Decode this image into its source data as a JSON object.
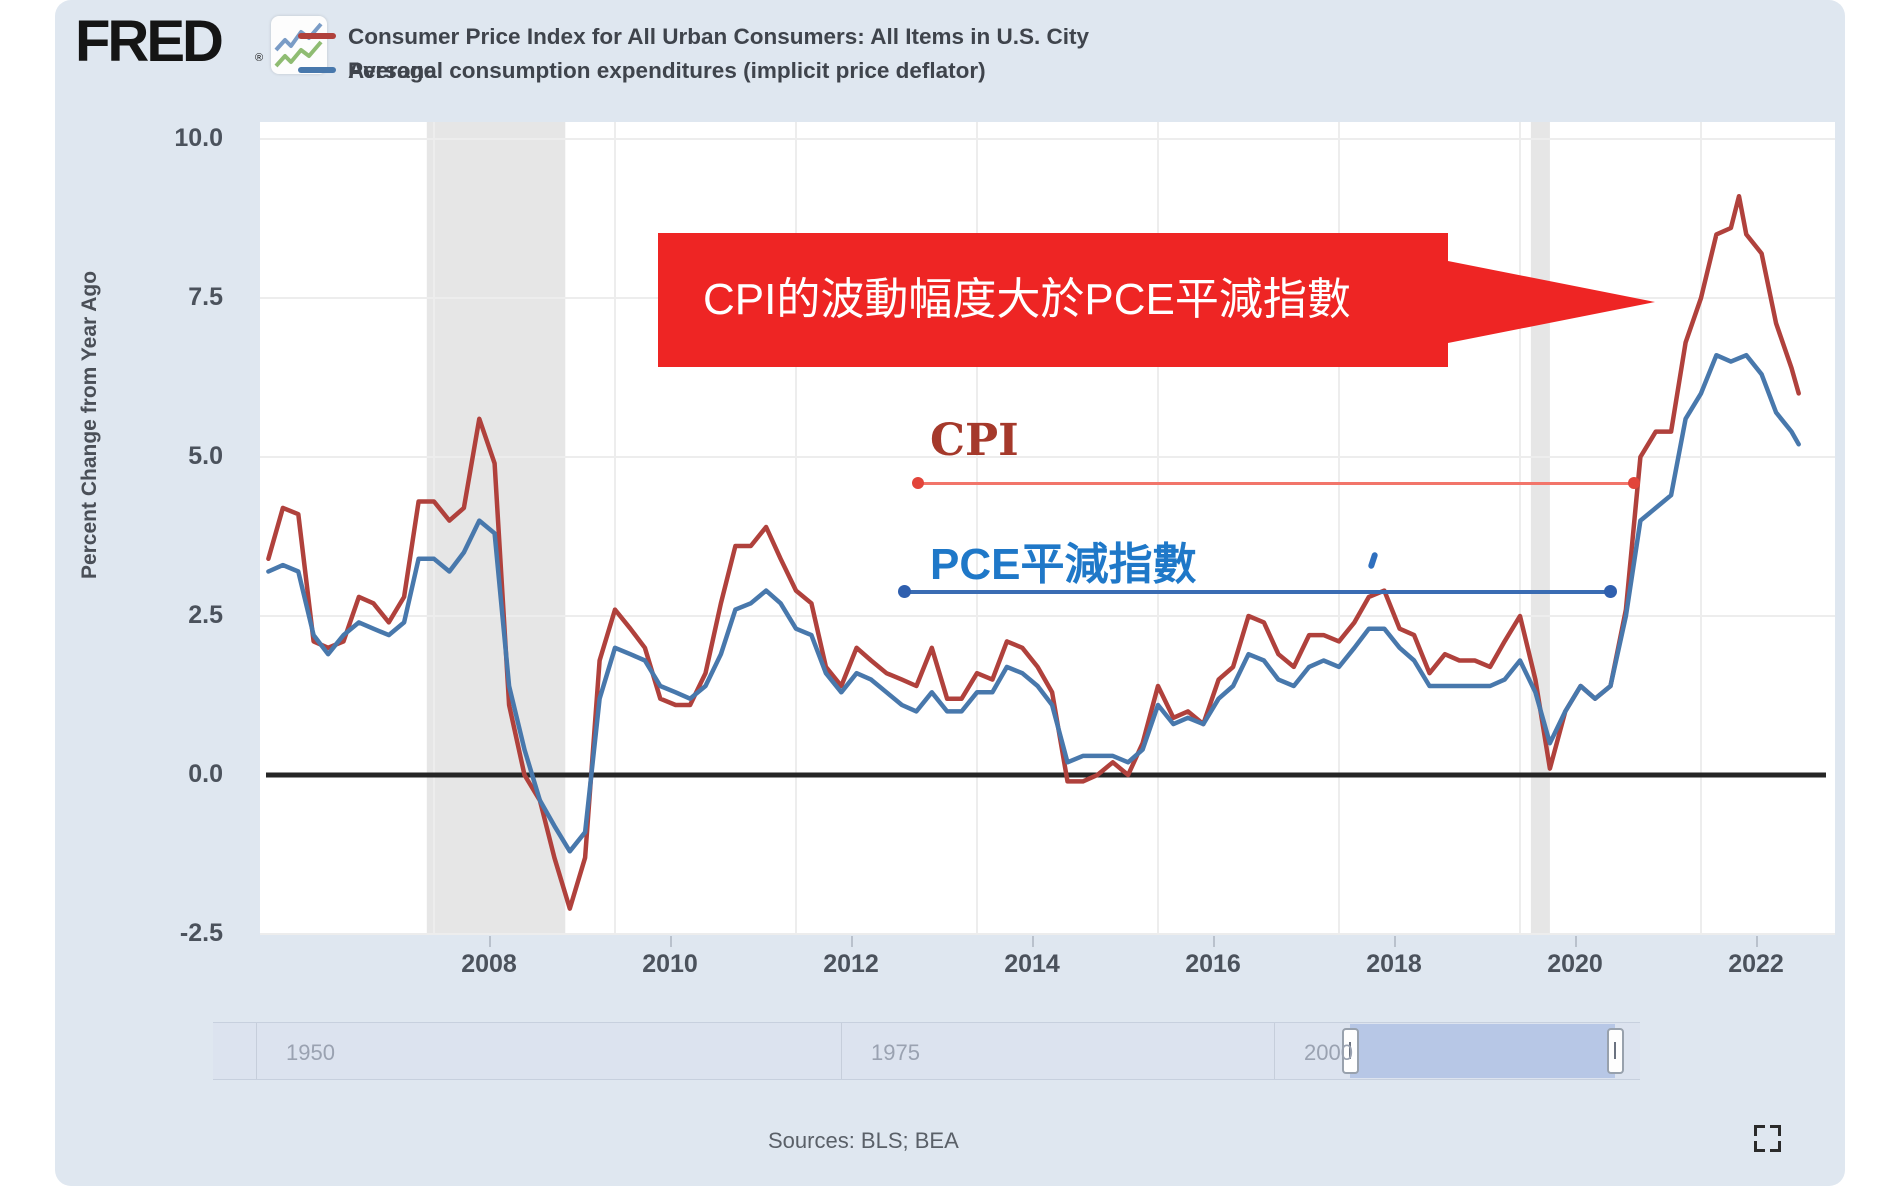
{
  "header": {
    "logo": "FRED",
    "reg_mark": "®",
    "legend": [
      {
        "label": "Consumer Price Index for All Urban Consumers: All Items in U.S. City",
        "color": "#b0413c"
      },
      {
        "overlap_word": "Average",
        "label": "Personal consumption expenditures (implicit price deflator)",
        "color": "#4878ac"
      }
    ]
  },
  "y_axis": {
    "title": "Percent Change from Year Ago",
    "ticks": [
      {
        "label": "10.0",
        "v": 10.0
      },
      {
        "label": "7.5",
        "v": 7.5
      },
      {
        "label": "5.0",
        "v": 5.0
      },
      {
        "label": "2.5",
        "v": 2.5
      },
      {
        "label": "0.0",
        "v": 0.0
      },
      {
        "label": "-2.5",
        "v": -2.5
      }
    ]
  },
  "x_axis": {
    "ticks": [
      {
        "label": "2008",
        "v": 2008
      },
      {
        "label": "2010",
        "v": 2010
      },
      {
        "label": "2012",
        "v": 2012
      },
      {
        "label": "2014",
        "v": 2014
      },
      {
        "label": "2016",
        "v": 2016
      },
      {
        "label": "2018",
        "v": 2018
      },
      {
        "label": "2020",
        "v": 2020
      },
      {
        "label": "2022",
        "v": 2022
      }
    ]
  },
  "annotations": {
    "callout_text": "CPI的波動幅度大於PCE平減指數",
    "callout_bg": "#ee2524",
    "cpi_label": "CPI",
    "cpi_label_color": "#a5392b",
    "cpi_line_color": "#f2756a",
    "pce_label": "PCE平減指數",
    "pce_label_color": "#1f78c8",
    "pce_line_color": "#3a6cb3"
  },
  "slider": {
    "labels": [
      "1950",
      "1975",
      "2000"
    ]
  },
  "footer": {
    "sources": "Sources: BLS; BEA"
  },
  "chart_data": {
    "type": "line",
    "ylabel": "Percent Change from Year Ago",
    "ylim": [
      -2.9,
      10.3
    ],
    "x_range": [
      2006.08,
      2023.45
    ],
    "grid": true,
    "zero_line_color": "#262626",
    "gridline_color": "#ededed",
    "recession_band_color": "#e6e6e6",
    "recession_bands": [
      [
        2007.92,
        2009.45
      ],
      [
        2020.12,
        2020.33
      ]
    ],
    "annotation_lines": [
      {
        "label": "CPI",
        "value": 4.6,
        "x_from": 2013.4,
        "x_to": 2021.3
      },
      {
        "label": "PCE平減指數",
        "value": 2.9,
        "x_from": 2013.2,
        "x_to": 2021.05
      }
    ],
    "series": [
      {
        "name": "Consumer Price Index for All Urban Consumers: All Items in U.S. City Average",
        "color": "#b0413c",
        "points": [
          [
            2006.17,
            3.4
          ],
          [
            2006.33,
            4.2
          ],
          [
            2006.5,
            4.1
          ],
          [
            2006.67,
            2.1
          ],
          [
            2006.83,
            2.0
          ],
          [
            2007.0,
            2.1
          ],
          [
            2007.17,
            2.8
          ],
          [
            2007.33,
            2.7
          ],
          [
            2007.5,
            2.4
          ],
          [
            2007.67,
            2.8
          ],
          [
            2007.83,
            4.3
          ],
          [
            2008.0,
            4.3
          ],
          [
            2008.17,
            4.0
          ],
          [
            2008.33,
            4.2
          ],
          [
            2008.5,
            5.6
          ],
          [
            2008.67,
            4.9
          ],
          [
            2008.83,
            1.1
          ],
          [
            2009.0,
            0.0
          ],
          [
            2009.17,
            -0.4
          ],
          [
            2009.33,
            -1.3
          ],
          [
            2009.5,
            -2.1
          ],
          [
            2009.67,
            -1.3
          ],
          [
            2009.83,
            1.8
          ],
          [
            2010.0,
            2.6
          ],
          [
            2010.17,
            2.3
          ],
          [
            2010.33,
            2.0
          ],
          [
            2010.5,
            1.2
          ],
          [
            2010.67,
            1.1
          ],
          [
            2010.83,
            1.1
          ],
          [
            2011.0,
            1.6
          ],
          [
            2011.17,
            2.7
          ],
          [
            2011.33,
            3.6
          ],
          [
            2011.5,
            3.6
          ],
          [
            2011.67,
            3.9
          ],
          [
            2011.83,
            3.4
          ],
          [
            2012.0,
            2.9
          ],
          [
            2012.17,
            2.7
          ],
          [
            2012.33,
            1.7
          ],
          [
            2012.5,
            1.4
          ],
          [
            2012.67,
            2.0
          ],
          [
            2012.83,
            1.8
          ],
          [
            2013.0,
            1.6
          ],
          [
            2013.17,
            1.5
          ],
          [
            2013.33,
            1.4
          ],
          [
            2013.5,
            2.0
          ],
          [
            2013.67,
            1.2
          ],
          [
            2013.83,
            1.2
          ],
          [
            2014.0,
            1.6
          ],
          [
            2014.17,
            1.5
          ],
          [
            2014.33,
            2.1
          ],
          [
            2014.5,
            2.0
          ],
          [
            2014.67,
            1.7
          ],
          [
            2014.83,
            1.3
          ],
          [
            2015.0,
            -0.1
          ],
          [
            2015.17,
            -0.1
          ],
          [
            2015.33,
            0.0
          ],
          [
            2015.5,
            0.2
          ],
          [
            2015.67,
            0.0
          ],
          [
            2015.83,
            0.5
          ],
          [
            2016.0,
            1.4
          ],
          [
            2016.17,
            0.9
          ],
          [
            2016.33,
            1.0
          ],
          [
            2016.5,
            0.8
          ],
          [
            2016.67,
            1.5
          ],
          [
            2016.83,
            1.7
          ],
          [
            2017.0,
            2.5
          ],
          [
            2017.17,
            2.4
          ],
          [
            2017.33,
            1.9
          ],
          [
            2017.5,
            1.7
          ],
          [
            2017.67,
            2.2
          ],
          [
            2017.83,
            2.2
          ],
          [
            2018.0,
            2.1
          ],
          [
            2018.17,
            2.4
          ],
          [
            2018.33,
            2.8
          ],
          [
            2018.5,
            2.9
          ],
          [
            2018.67,
            2.3
          ],
          [
            2018.83,
            2.2
          ],
          [
            2019.0,
            1.6
          ],
          [
            2019.17,
            1.9
          ],
          [
            2019.33,
            1.8
          ],
          [
            2019.5,
            1.8
          ],
          [
            2019.67,
            1.7
          ],
          [
            2019.83,
            2.1
          ],
          [
            2020.0,
            2.5
          ],
          [
            2020.17,
            1.5
          ],
          [
            2020.33,
            0.1
          ],
          [
            2020.5,
            1.0
          ],
          [
            2020.67,
            1.4
          ],
          [
            2020.83,
            1.2
          ],
          [
            2021.0,
            1.4
          ],
          [
            2021.17,
            2.6
          ],
          [
            2021.33,
            5.0
          ],
          [
            2021.5,
            5.4
          ],
          [
            2021.67,
            5.4
          ],
          [
            2021.83,
            6.8
          ],
          [
            2022.0,
            7.5
          ],
          [
            2022.17,
            8.5
          ],
          [
            2022.33,
            8.6
          ],
          [
            2022.42,
            9.1
          ],
          [
            2022.5,
            8.5
          ],
          [
            2022.67,
            8.2
          ],
          [
            2022.83,
            7.1
          ],
          [
            2023.0,
            6.4
          ],
          [
            2023.08,
            6.0
          ]
        ]
      },
      {
        "name": "Personal consumption expenditures (implicit price deflator)",
        "color": "#4878ac",
        "points": [
          [
            2006.17,
            3.2
          ],
          [
            2006.33,
            3.3
          ],
          [
            2006.5,
            3.2
          ],
          [
            2006.67,
            2.2
          ],
          [
            2006.83,
            1.9
          ],
          [
            2007.0,
            2.2
          ],
          [
            2007.17,
            2.4
          ],
          [
            2007.33,
            2.3
          ],
          [
            2007.5,
            2.2
          ],
          [
            2007.67,
            2.4
          ],
          [
            2007.83,
            3.4
          ],
          [
            2008.0,
            3.4
          ],
          [
            2008.17,
            3.2
          ],
          [
            2008.33,
            3.5
          ],
          [
            2008.5,
            4.0
          ],
          [
            2008.67,
            3.8
          ],
          [
            2008.83,
            1.4
          ],
          [
            2009.0,
            0.4
          ],
          [
            2009.17,
            -0.4
          ],
          [
            2009.33,
            -0.8
          ],
          [
            2009.5,
            -1.2
          ],
          [
            2009.67,
            -0.9
          ],
          [
            2009.83,
            1.2
          ],
          [
            2010.0,
            2.0
          ],
          [
            2010.17,
            1.9
          ],
          [
            2010.33,
            1.8
          ],
          [
            2010.5,
            1.4
          ],
          [
            2010.67,
            1.3
          ],
          [
            2010.83,
            1.2
          ],
          [
            2011.0,
            1.4
          ],
          [
            2011.17,
            1.9
          ],
          [
            2011.33,
            2.6
          ],
          [
            2011.5,
            2.7
          ],
          [
            2011.67,
            2.9
          ],
          [
            2011.83,
            2.7
          ],
          [
            2012.0,
            2.3
          ],
          [
            2012.17,
            2.2
          ],
          [
            2012.33,
            1.6
          ],
          [
            2012.5,
            1.3
          ],
          [
            2012.67,
            1.6
          ],
          [
            2012.83,
            1.5
          ],
          [
            2013.0,
            1.3
          ],
          [
            2013.17,
            1.1
          ],
          [
            2013.33,
            1.0
          ],
          [
            2013.5,
            1.3
          ],
          [
            2013.67,
            1.0
          ],
          [
            2013.83,
            1.0
          ],
          [
            2014.0,
            1.3
          ],
          [
            2014.17,
            1.3
          ],
          [
            2014.33,
            1.7
          ],
          [
            2014.5,
            1.6
          ],
          [
            2014.67,
            1.4
          ],
          [
            2014.83,
            1.1
          ],
          [
            2015.0,
            0.2
          ],
          [
            2015.17,
            0.3
          ],
          [
            2015.33,
            0.3
          ],
          [
            2015.5,
            0.3
          ],
          [
            2015.67,
            0.2
          ],
          [
            2015.83,
            0.4
          ],
          [
            2016.0,
            1.1
          ],
          [
            2016.17,
            0.8
          ],
          [
            2016.33,
            0.9
          ],
          [
            2016.5,
            0.8
          ],
          [
            2016.67,
            1.2
          ],
          [
            2016.83,
            1.4
          ],
          [
            2017.0,
            1.9
          ],
          [
            2017.17,
            1.8
          ],
          [
            2017.33,
            1.5
          ],
          [
            2017.5,
            1.4
          ],
          [
            2017.67,
            1.7
          ],
          [
            2017.83,
            1.8
          ],
          [
            2018.0,
            1.7
          ],
          [
            2018.17,
            2.0
          ],
          [
            2018.33,
            2.3
          ],
          [
            2018.5,
            2.3
          ],
          [
            2018.67,
            2.0
          ],
          [
            2018.83,
            1.8
          ],
          [
            2019.0,
            1.4
          ],
          [
            2019.17,
            1.4
          ],
          [
            2019.33,
            1.4
          ],
          [
            2019.5,
            1.4
          ],
          [
            2019.67,
            1.4
          ],
          [
            2019.83,
            1.5
          ],
          [
            2020.0,
            1.8
          ],
          [
            2020.17,
            1.3
          ],
          [
            2020.33,
            0.5
          ],
          [
            2020.5,
            1.0
          ],
          [
            2020.67,
            1.4
          ],
          [
            2020.83,
            1.2
          ],
          [
            2021.0,
            1.4
          ],
          [
            2021.17,
            2.5
          ],
          [
            2021.33,
            4.0
          ],
          [
            2021.5,
            4.2
          ],
          [
            2021.67,
            4.4
          ],
          [
            2021.83,
            5.6
          ],
          [
            2022.0,
            6.0
          ],
          [
            2022.17,
            6.6
          ],
          [
            2022.33,
            6.5
          ],
          [
            2022.5,
            6.6
          ],
          [
            2022.67,
            6.3
          ],
          [
            2022.83,
            5.7
          ],
          [
            2023.0,
            5.4
          ],
          [
            2023.08,
            5.2
          ]
        ]
      }
    ]
  }
}
